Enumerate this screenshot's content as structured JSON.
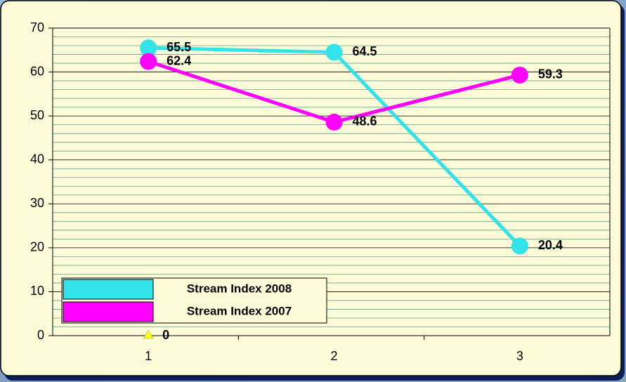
{
  "chart_data": {
    "type": "line",
    "categories": [
      "1",
      "2",
      "3"
    ],
    "series": [
      {
        "name": "Stream Index 2008",
        "color": "#33e3ea",
        "marker": "circle",
        "values": [
          65.5,
          64.5,
          20.4
        ]
      },
      {
        "name": "Stream Index 2007",
        "color": "#ff00ff",
        "marker": "circle",
        "values": [
          62.4,
          48.6,
          59.3
        ]
      },
      {
        "color": "#ffff00",
        "marker": "triangle",
        "values": [
          0,
          null,
          null
        ]
      }
    ],
    "ylim": [
      0,
      70
    ],
    "yticks": [
      0,
      10,
      20,
      30,
      40,
      50,
      60,
      70
    ],
    "minor_yticks": [
      2,
      4,
      6,
      8,
      12,
      14,
      16,
      18,
      22,
      24,
      26,
      28,
      32,
      34,
      36,
      38,
      42,
      44,
      46,
      48,
      52,
      54,
      56,
      58,
      62,
      64,
      66,
      68
    ],
    "grid": true,
    "legend": "lower-left"
  }
}
